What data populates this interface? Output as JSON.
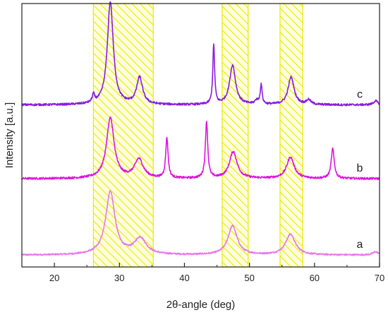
{
  "chart_data": {
    "type": "line",
    "title": "",
    "xlabel": "2θ-angle (deg)",
    "ylabel": "Intensity [a.u.]",
    "xlim": [
      15,
      70
    ],
    "ylim": [
      0,
      1
    ],
    "x_ticks": [
      20,
      30,
      40,
      50,
      60,
      70
    ],
    "y_ticks_visible": false,
    "grid": false,
    "legend": "none",
    "highlight_bands": [
      {
        "from": 26,
        "to": 35.2,
        "color": "#e8e800",
        "pattern": "diagonal-hatch"
      },
      {
        "from": 45.8,
        "to": 49.8,
        "color": "#e8e800",
        "pattern": "diagonal-hatch"
      },
      {
        "from": 54.7,
        "to": 58.2,
        "color": "#e8e800",
        "pattern": "diagonal-hatch"
      }
    ],
    "series": [
      {
        "label": "a",
        "color": "#e878e8",
        "baseline": 0.045,
        "noise": 0.003,
        "peaks": [
          {
            "x": 28.6,
            "height": 0.24,
            "width": 0.85
          },
          {
            "x": 33.2,
            "height": 0.062,
            "width": 1.1
          },
          {
            "x": 47.4,
            "height": 0.11,
            "width": 0.85
          },
          {
            "x": 56.3,
            "height": 0.078,
            "width": 0.9
          },
          {
            "x": 69.4,
            "height": 0.012,
            "width": 0.5
          }
        ]
      },
      {
        "label": "b",
        "color": "#dd14dd",
        "baseline": 0.335,
        "noise": 0.004,
        "peaks": [
          {
            "x": 28.6,
            "height": 0.23,
            "width": 0.7
          },
          {
            "x": 33.0,
            "height": 0.072,
            "width": 0.8
          },
          {
            "x": 37.3,
            "height": 0.153,
            "width": 0.22
          },
          {
            "x": 43.4,
            "height": 0.215,
            "width": 0.22
          },
          {
            "x": 47.5,
            "height": 0.102,
            "width": 0.7
          },
          {
            "x": 56.3,
            "height": 0.081,
            "width": 0.7
          },
          {
            "x": 62.8,
            "height": 0.113,
            "width": 0.28
          }
        ]
      },
      {
        "label": "c",
        "color": "#8a1ce0",
        "baseline": 0.615,
        "noise": 0.004,
        "peaks": [
          {
            "x": 26.0,
            "height": 0.03,
            "width": 0.2
          },
          {
            "x": 28.6,
            "height": 0.39,
            "width": 0.55
          },
          {
            "x": 33.1,
            "height": 0.102,
            "width": 0.55
          },
          {
            "x": 44.5,
            "height": 0.225,
            "width": 0.17
          },
          {
            "x": 47.4,
            "height": 0.15,
            "width": 0.55
          },
          {
            "x": 51.1,
            "height": 0.015,
            "width": 0.3
          },
          {
            "x": 51.8,
            "height": 0.075,
            "width": 0.17
          },
          {
            "x": 56.4,
            "height": 0.105,
            "width": 0.55
          },
          {
            "x": 59.1,
            "height": 0.018,
            "width": 0.4
          },
          {
            "x": 69.4,
            "height": 0.015,
            "width": 0.4
          }
        ]
      }
    ]
  }
}
